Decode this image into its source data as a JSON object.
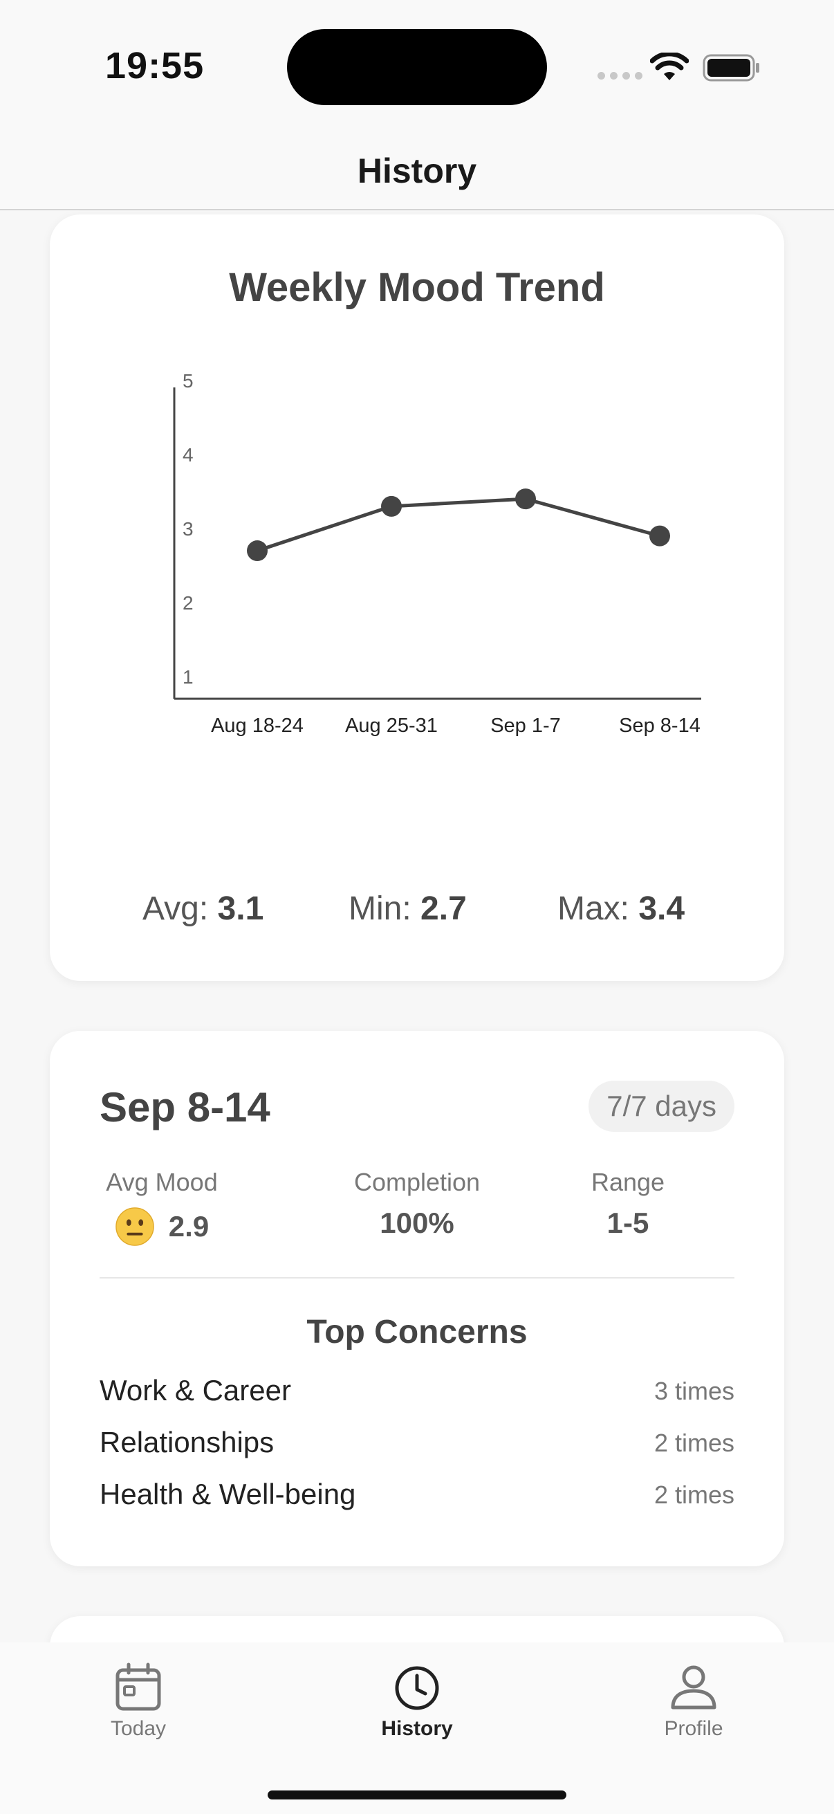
{
  "status_bar": {
    "time": "19:55"
  },
  "header": {
    "title": "History"
  },
  "trend_card": {
    "title": "Weekly Mood Trend",
    "stats": {
      "avg_label": "Avg:",
      "avg_value": "3.1",
      "min_label": "Min:",
      "min_value": "2.7",
      "max_label": "Max:",
      "max_value": "3.4"
    }
  },
  "chart_data": {
    "type": "line",
    "title": "Weekly Mood Trend",
    "categories": [
      "Aug 18-24",
      "Aug 25-31",
      "Sep 1-7",
      "Sep 8-14"
    ],
    "series": [
      {
        "values": [
          2.7,
          3.3,
          3.4,
          2.9
        ]
      }
    ],
    "y_ticks": [
      "1",
      "2",
      "3",
      "4",
      "5"
    ],
    "ylim": [
      0.7,
      5
    ],
    "grid": false,
    "xlabel": "",
    "ylabel": "",
    "line_color": "#444444"
  },
  "week_card": {
    "title": "Sep 8-14",
    "badge": "7/7 days",
    "metrics": [
      {
        "label": "Avg Mood",
        "value": "2.9",
        "icon": "neutral-face-emoji"
      },
      {
        "label": "Completion",
        "value": "100%"
      },
      {
        "label": "Range",
        "value": "1-5"
      }
    ],
    "concerns_title": "Top Concerns",
    "concerns": [
      {
        "name": "Work & Career",
        "count": "3 times"
      },
      {
        "name": "Relationships",
        "count": "2 times"
      },
      {
        "name": "Health & Well-being",
        "count": "2 times"
      }
    ]
  },
  "tab_bar": {
    "tabs": [
      {
        "label": "Today",
        "icon": "calendar-icon",
        "active": false
      },
      {
        "label": "History",
        "icon": "clock-icon",
        "active": true
      },
      {
        "label": "Profile",
        "icon": "person-icon",
        "active": false
      }
    ]
  }
}
